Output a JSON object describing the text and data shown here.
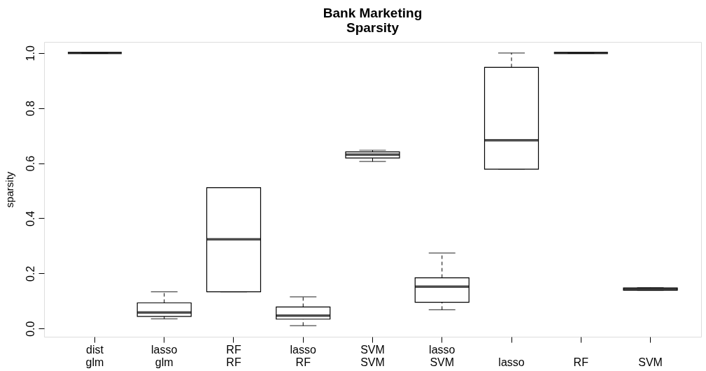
{
  "chart_data": {
    "type": "box",
    "title": "Bank Marketing\nSparsity",
    "ylabel": "sparsity",
    "categories": [
      "dist\nglm",
      "lasso\nglm",
      "RF\nRF",
      "lasso\nRF",
      "SVM\nSVM",
      "lasso\nSVM",
      "lasso",
      "RF",
      "SVM"
    ],
    "boxes": [
      {
        "low": 1.0,
        "q1": 1.0,
        "median": 1.0,
        "q3": 1.0,
        "high": 1.0
      },
      {
        "low": 0.035,
        "q1": 0.044,
        "median": 0.058,
        "q3": 0.093,
        "high": 0.133
      },
      {
        "low": 0.133,
        "q1": 0.133,
        "median": 0.324,
        "q3": 0.511,
        "high": 0.511
      },
      {
        "low": 0.01,
        "q1": 0.034,
        "median": 0.047,
        "q3": 0.078,
        "high": 0.115
      },
      {
        "low": 0.606,
        "q1": 0.619,
        "median": 0.631,
        "q3": 0.641,
        "high": 0.647
      },
      {
        "low": 0.068,
        "q1": 0.095,
        "median": 0.152,
        "q3": 0.184,
        "high": 0.274
      },
      {
        "low": 0.578,
        "q1": 0.578,
        "median": 0.683,
        "q3": 0.948,
        "high": 1.0
      },
      {
        "low": 1.0,
        "q1": 1.0,
        "median": 1.0,
        "q3": 1.0,
        "high": 1.0
      },
      {
        "low": 0.138,
        "q1": 0.139,
        "median": 0.143,
        "q3": 0.147,
        "high": 0.148
      }
    ],
    "ylim": [
      -0.03,
      1.04
    ],
    "yticks": [
      {
        "value": 0,
        "label": "0.0"
      },
      0.2,
      0.4,
      0.6,
      0.8,
      {
        "value": 1,
        "label": "1.0"
      }
    ]
  }
}
